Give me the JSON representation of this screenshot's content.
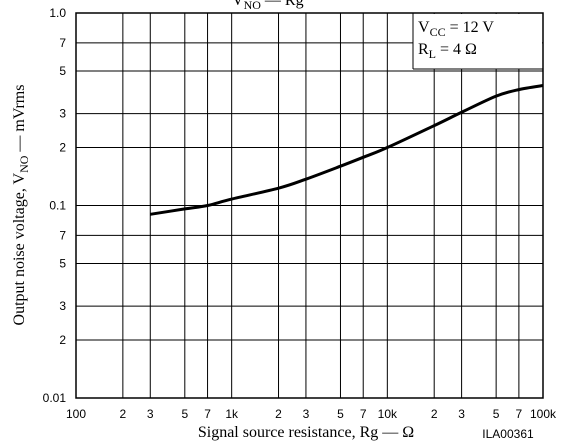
{
  "chart_data": {
    "type": "line",
    "title": [
      "V",
      "NO",
      " — Rg"
    ],
    "y_label": [
      "Output noise voltage, V",
      "NO",
      " — mVrms"
    ],
    "x_label": "Signal source resistance, Rg — Ω",
    "figure_id": "ILA00361",
    "annotations": [
      [
        "V",
        "CC",
        " = 12 V"
      ],
      [
        "R",
        "L",
        " = 4 Ω"
      ]
    ],
    "x": [
      300,
      500,
      700,
      1000,
      2000,
      3000,
      5000,
      7000,
      10000,
      20000,
      30000,
      50000,
      70000,
      100000
    ],
    "values": [
      0.09,
      0.096,
      0.1,
      0.108,
      0.123,
      0.137,
      0.16,
      0.178,
      0.2,
      0.26,
      0.305,
      0.37,
      0.4,
      0.42
    ],
    "color": "#000000",
    "xlog": true,
    "ylog": true,
    "grid": true,
    "xlim": [
      100,
      100000
    ],
    "ylim": [
      0.01,
      1
    ],
    "xticks": [
      100,
      {
        "value": 200,
        "label": "2"
      },
      {
        "value": 300,
        "label": "3"
      },
      {
        "value": 500,
        "label": "5"
      },
      {
        "value": 700,
        "label": "7"
      },
      {
        "value": 1000,
        "label": "1k"
      },
      {
        "value": 2000,
        "label": "2"
      },
      {
        "value": 3000,
        "label": "3"
      },
      {
        "value": 5000,
        "label": "5"
      },
      {
        "value": 7000,
        "label": "7"
      },
      {
        "value": 10000,
        "label": "10k"
      },
      {
        "value": 20000,
        "label": "2"
      },
      {
        "value": 30000,
        "label": "3"
      },
      {
        "value": 50000,
        "label": "5"
      },
      {
        "value": 70000,
        "label": "7"
      },
      {
        "value": 100000,
        "label": "100k"
      }
    ],
    "yticks": [
      0.01,
      {
        "value": 0.02,
        "label": "2"
      },
      {
        "value": 0.03,
        "label": "3"
      },
      {
        "value": 0.05,
        "label": "5"
      },
      {
        "value": 0.07,
        "label": "7"
      },
      0.1,
      {
        "value": 0.2,
        "label": "2"
      },
      {
        "value": 0.3,
        "label": "3"
      },
      {
        "value": 0.5,
        "label": "5"
      },
      {
        "value": 0.7,
        "label": "7"
      },
      {
        "value": 1,
        "label": "1.0"
      }
    ]
  }
}
